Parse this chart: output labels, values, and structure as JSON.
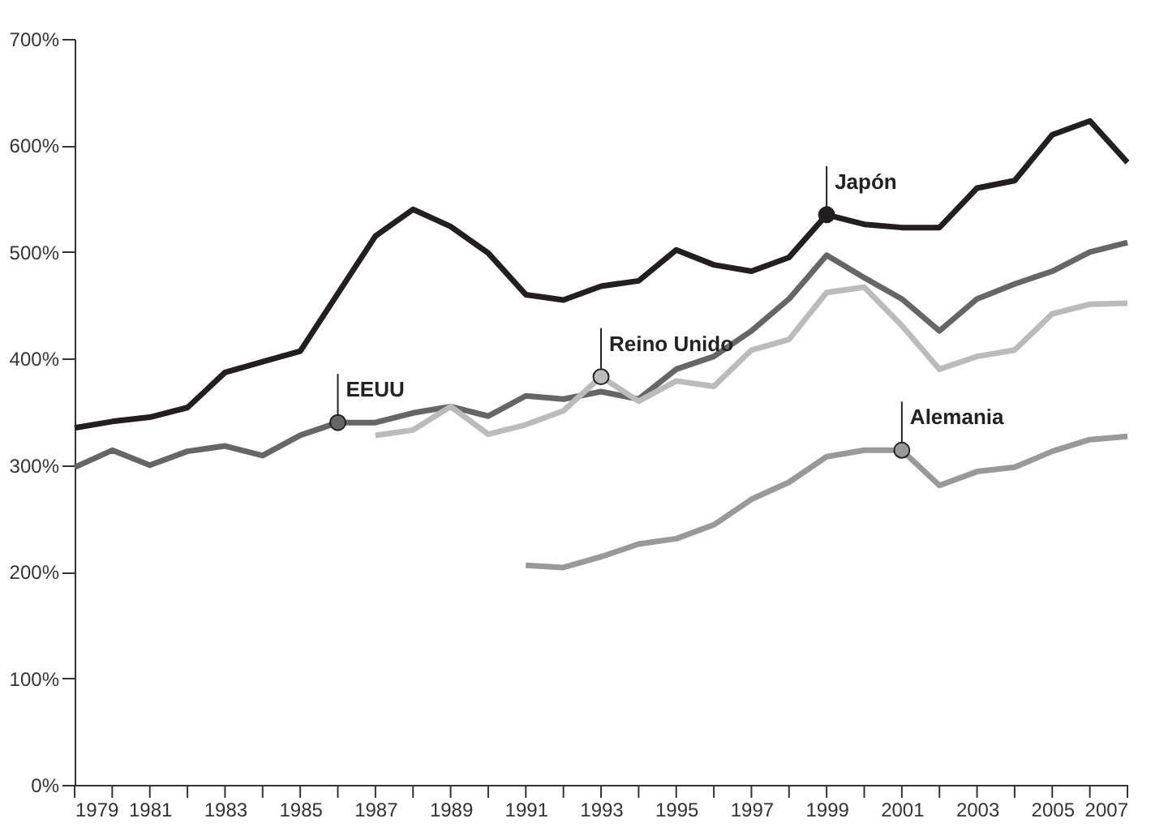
{
  "chart_data": {
    "type": "line",
    "x": [
      1979,
      1980,
      1981,
      1982,
      1983,
      1984,
      1985,
      1986,
      1987,
      1988,
      1989,
      1990,
      1991,
      1992,
      1993,
      1994,
      1995,
      1996,
      1997,
      1998,
      1999,
      2000,
      2001,
      2002,
      2003,
      2004,
      2005,
      2006,
      2007
    ],
    "series": [
      {
        "color": "#231f20",
        "values": [
          335,
          341,
          345,
          354,
          387,
          397,
          407,
          461,
          515,
          540,
          524,
          499,
          460,
          455,
          468,
          473,
          502,
          488,
          482,
          495,
          535,
          526,
          523,
          523,
          560,
          567,
          610,
          623,
          584
        ]
      },
      {
        "color": "#666666",
        "values": [
          298,
          314,
          300,
          313,
          318,
          309,
          328,
          340,
          340,
          349,
          355,
          346,
          365,
          362,
          369,
          362,
          390,
          402,
          426,
          456,
          497,
          476,
          456,
          426,
          456,
          470,
          482,
          500,
          509
        ]
      },
      {
        "color": "#bbbbbb",
        "values": [
          null,
          null,
          null,
          null,
          null,
          null,
          null,
          null,
          328,
          333,
          355,
          329,
          338,
          351,
          383,
          360,
          379,
          374,
          408,
          418,
          462,
          467,
          431,
          390,
          402,
          408,
          442,
          451,
          452
        ]
      },
      {
        "color": "#999999",
        "values": [
          null,
          null,
          null,
          null,
          null,
          null,
          null,
          null,
          null,
          null,
          null,
          null,
          206,
          204,
          214,
          226,
          231,
          244,
          268,
          284,
          308,
          314,
          314,
          281,
          294,
          298,
          313,
          324,
          327
        ]
      }
    ],
    "annotations": [
      {
        "text": "EEUU",
        "x": 1986,
        "y": 340
      },
      {
        "text": "Reino Unido",
        "x": 1993,
        "y": 383
      },
      {
        "text": "Japón",
        "x": 1999,
        "y": 535
      },
      {
        "text": "Alemania",
        "x": 2001,
        "y": 314
      }
    ],
    "xlim": [
      1979,
      2007
    ],
    "xticks": [
      1979,
      {
        "value": 1980,
        "label": null
      },
      1981,
      {
        "value": 1982,
        "label": null
      },
      1983,
      {
        "value": 1984,
        "label": null
      },
      1985,
      {
        "value": 1986,
        "label": null
      },
      1987,
      {
        "value": 1988,
        "label": null
      },
      1989,
      {
        "value": 1990,
        "label": null
      },
      1991,
      {
        "value": 1992,
        "label": null
      },
      1993,
      {
        "value": 1994,
        "label": null
      },
      1995,
      {
        "value": 1996,
        "label": null
      },
      1997,
      {
        "value": 1998,
        "label": null
      },
      1999,
      {
        "value": 2000,
        "label": null
      },
      2001,
      {
        "value": 2002,
        "label": null
      },
      2003,
      {
        "value": 2004,
        "label": null
      },
      2005,
      {
        "value": 2006,
        "label": null
      },
      2007
    ],
    "ylim": [
      0,
      700
    ],
    "yticks": [
      {
        "value": 0,
        "label": "0%"
      },
      {
        "value": 100,
        "label": "100%"
      },
      {
        "value": 200,
        "label": "200%"
      },
      {
        "value": 300,
        "label": "300%"
      },
      {
        "value": 400,
        "label": "400%"
      },
      {
        "value": 500,
        "label": "500%"
      },
      {
        "value": 600,
        "label": "600%"
      },
      {
        "value": 700,
        "label": "700%"
      }
    ],
    "grid": false,
    "legend": false,
    "marker": "none",
    "line_style": "solid"
  }
}
